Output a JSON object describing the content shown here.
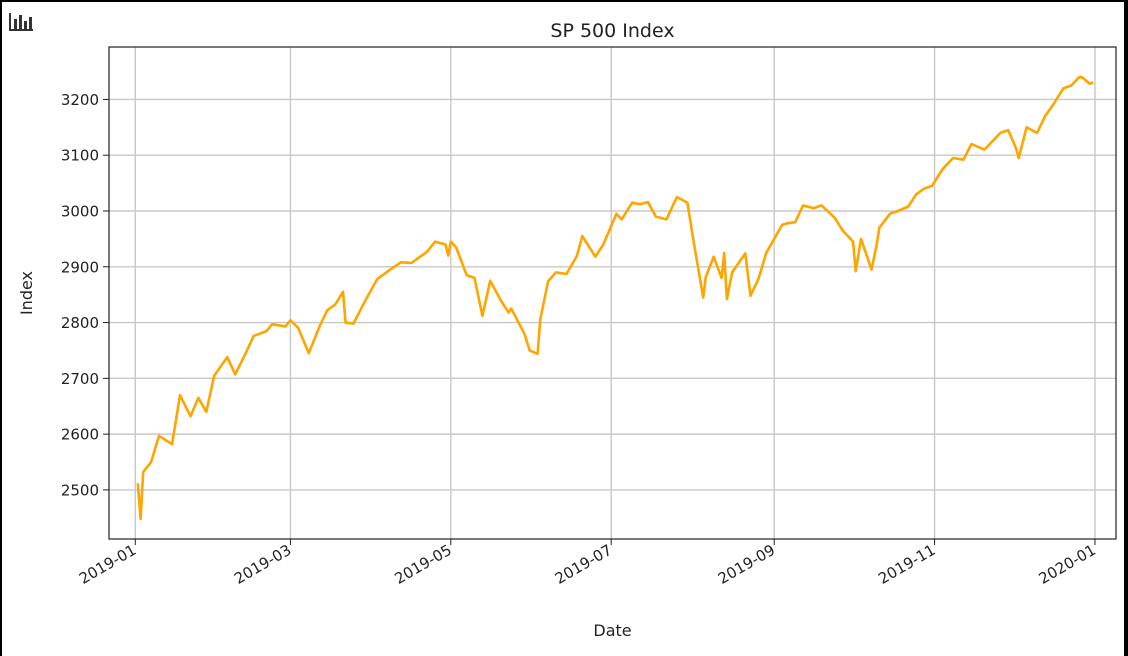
{
  "toolbar": {
    "icon": "bar-chart-icon"
  },
  "chart_data": {
    "type": "line",
    "title": "SP 500 Index",
    "xlabel": "Date",
    "ylabel": "Index",
    "xlim": [
      "2018-12-22",
      "2020-01-09"
    ],
    "ylim": [
      2412,
      3294
    ],
    "x_ticks": [
      "2019-01",
      "2019-03",
      "2019-05",
      "2019-07",
      "2019-09",
      "2019-11",
      "2020-01"
    ],
    "y_ticks": [
      2500,
      2600,
      2700,
      2800,
      2900,
      3000,
      3100,
      3200
    ],
    "grid": true,
    "legend": "none",
    "series": [
      {
        "color": "#ffa500",
        "x": [
          "2019-01-02",
          "2019-01-03",
          "2019-01-04",
          "2019-01-07",
          "2019-01-10",
          "2019-01-15",
          "2019-01-18",
          "2019-01-22",
          "2019-01-25",
          "2019-01-28",
          "2019-01-31",
          "2019-02-05",
          "2019-02-08",
          "2019-02-12",
          "2019-02-15",
          "2019-02-20",
          "2019-02-22",
          "2019-02-27",
          "2019-03-01",
          "2019-03-04",
          "2019-03-08",
          "2019-03-12",
          "2019-03-15",
          "2019-03-18",
          "2019-03-21",
          "2019-03-22",
          "2019-03-25",
          "2019-03-29",
          "2019-04-03",
          "2019-04-08",
          "2019-04-12",
          "2019-04-16",
          "2019-04-22",
          "2019-04-25",
          "2019-04-29",
          "2019-04-30",
          "2019-05-01",
          "2019-05-03",
          "2019-05-07",
          "2019-05-10",
          "2019-05-13",
          "2019-05-16",
          "2019-05-20",
          "2019-05-23",
          "2019-05-24",
          "2019-05-29",
          "2019-05-31",
          "2019-06-03",
          "2019-06-04",
          "2019-06-07",
          "2019-06-10",
          "2019-06-14",
          "2019-06-18",
          "2019-06-20",
          "2019-06-25",
          "2019-06-28",
          "2019-07-03",
          "2019-07-05",
          "2019-07-09",
          "2019-07-12",
          "2019-07-15",
          "2019-07-18",
          "2019-07-22",
          "2019-07-25",
          "2019-07-26",
          "2019-07-30",
          "2019-08-01",
          "2019-08-05",
          "2019-08-06",
          "2019-08-09",
          "2019-08-12",
          "2019-08-13",
          "2019-08-14",
          "2019-08-16",
          "2019-08-21",
          "2019-08-23",
          "2019-08-26",
          "2019-08-29",
          "2019-09-04",
          "2019-09-06",
          "2019-09-09",
          "2019-09-12",
          "2019-09-16",
          "2019-09-19",
          "2019-09-24",
          "2019-09-27",
          "2019-10-01",
          "2019-10-02",
          "2019-10-04",
          "2019-10-08",
          "2019-10-10",
          "2019-10-11",
          "2019-10-15",
          "2019-10-18",
          "2019-10-22",
          "2019-10-25",
          "2019-10-28",
          "2019-10-31",
          "2019-11-04",
          "2019-11-08",
          "2019-11-12",
          "2019-11-15",
          "2019-11-20",
          "2019-11-26",
          "2019-11-29",
          "2019-12-02",
          "2019-12-03",
          "2019-12-06",
          "2019-12-10",
          "2019-12-13",
          "2019-12-16",
          "2019-12-20",
          "2019-12-23",
          "2019-12-26",
          "2019-12-27",
          "2019-12-30",
          "2019-12-31"
        ],
        "y": [
          2510,
          2448,
          2532,
          2550,
          2597,
          2582,
          2670,
          2632,
          2665,
          2640,
          2705,
          2738,
          2707,
          2745,
          2776,
          2785,
          2797,
          2793,
          2804,
          2790,
          2745,
          2792,
          2822,
          2832,
          2855,
          2800,
          2798,
          2835,
          2878,
          2895,
          2908,
          2907,
          2927,
          2945,
          2940,
          2920,
          2945,
          2935,
          2885,
          2880,
          2812,
          2875,
          2840,
          2818,
          2825,
          2780,
          2750,
          2744,
          2805,
          2874,
          2890,
          2887,
          2920,
          2955,
          2918,
          2940,
          2995,
          2985,
          3015,
          3012,
          3016,
          2990,
          2985,
          3015,
          3025,
          3015,
          2955,
          2845,
          2882,
          2918,
          2880,
          2925,
          2842,
          2890,
          2924,
          2848,
          2878,
          2925,
          2975,
          2978,
          2980,
          3010,
          3005,
          3010,
          2988,
          2965,
          2945,
          2892,
          2950,
          2895,
          2940,
          2970,
          2995,
          3000,
          3008,
          3030,
          3040,
          3045,
          3075,
          3095,
          3092,
          3120,
          3110,
          3140,
          3145,
          3112,
          3095,
          3150,
          3140,
          3170,
          3190,
          3220,
          3225,
          3240,
          3240,
          3228,
          3230
        ]
      }
    ]
  }
}
